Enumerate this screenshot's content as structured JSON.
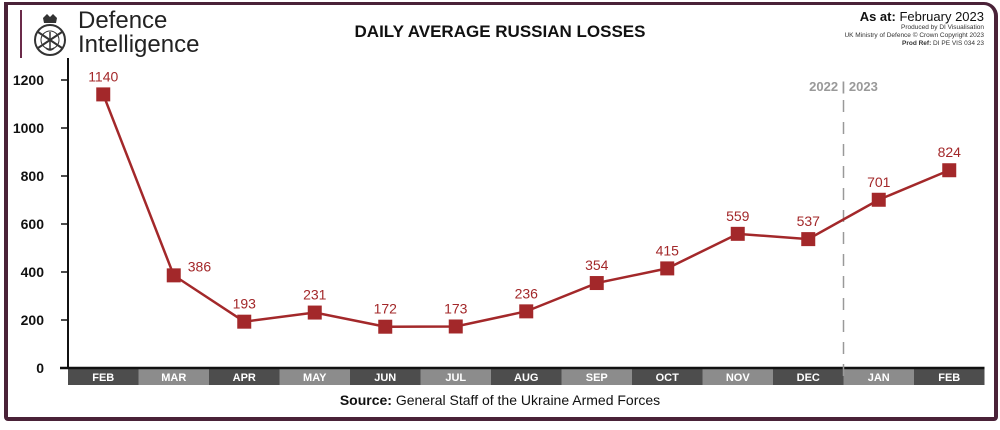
{
  "header": {
    "brand": [
      "Defence",
      "Intelligence"
    ],
    "title": "DAILY AVERAGE RUSSIAN LOSSES",
    "as_at_label": "As at:",
    "as_at_value": "February 2023",
    "produced_by": "Produced by DI Visualisation",
    "copyright": "UK Ministry of Defence © Crown Copyright 2023",
    "prod_ref_label": "Prod Ref:",
    "prod_ref_value": "DI PE VIS 034 23"
  },
  "footer": {
    "source_label": "Source:",
    "source_value": "General Staff of the Ukraine Armed Forces"
  },
  "chart_data": {
    "type": "line",
    "title": "DAILY AVERAGE RUSSIAN LOSSES",
    "categories": [
      "FEB",
      "MAR",
      "APR",
      "MAY",
      "JUN",
      "JUL",
      "AUG",
      "SEP",
      "OCT",
      "NOV",
      "DEC",
      "JAN",
      "FEB"
    ],
    "values": [
      1140,
      386,
      193,
      231,
      172,
      173,
      236,
      354,
      415,
      559,
      537,
      701,
      824
    ],
    "yticks": [
      0,
      200,
      400,
      600,
      800,
      1000,
      1200
    ],
    "ylim": [
      0,
      1200
    ],
    "grid": false,
    "annotation": "2022 | 2023",
    "divider_between": [
      "DEC",
      "JAN"
    ],
    "colors": {
      "line": "#a3282a",
      "label": "#a3282a",
      "band_dark": "#4d4d4d",
      "band_light": "#8c8c8c",
      "divider": "#999999"
    }
  }
}
